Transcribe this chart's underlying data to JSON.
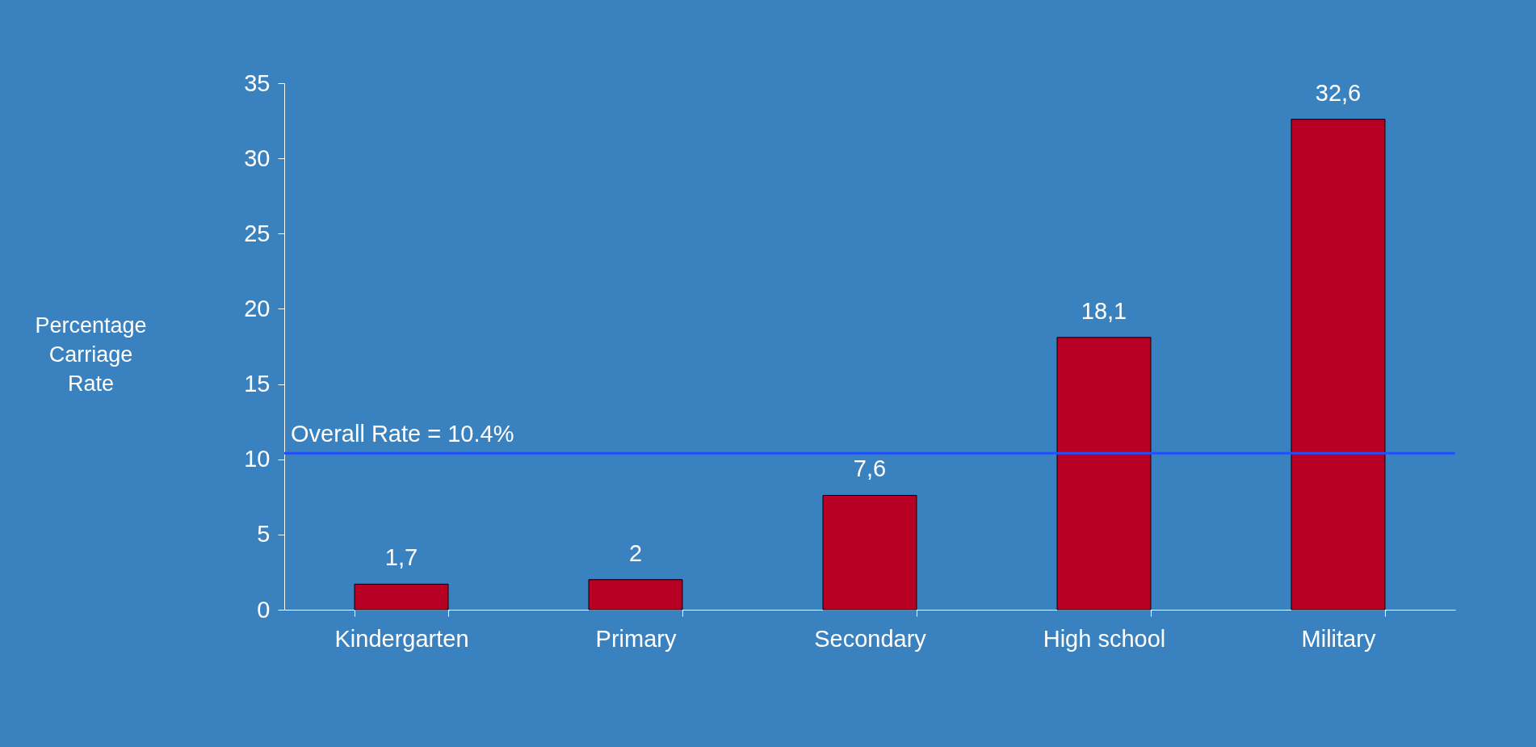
{
  "chart_data": {
    "type": "bar",
    "ylabel": "Percentage Carriage Rate",
    "categories": [
      "Kindergarten",
      "Primary",
      "Secondary",
      "High school",
      "Military"
    ],
    "values": [
      1.7,
      2,
      7.6,
      18.1,
      32.6
    ],
    "value_labels": [
      "1,7",
      "2",
      "7,6",
      "18,1",
      "32,6"
    ],
    "color": "#b80025",
    "ylim": [
      0,
      35
    ],
    "yticks": [
      0,
      5,
      10,
      15,
      20,
      25,
      30,
      35
    ],
    "ref_lines": [
      {
        "axis": "y",
        "value": 10.4,
        "label": "Overall Rate = 10.4%",
        "color": "#1f4fff"
      }
    ],
    "grid": false
  }
}
